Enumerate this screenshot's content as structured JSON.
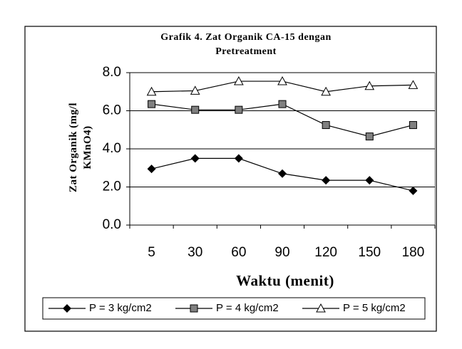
{
  "chart_data": {
    "type": "line",
    "title": "Grafik 4. Zat Organik CA-15 dengan Pretreatment",
    "xlabel": "Waktu (menit)",
    "ylabel": "Zat Organik (mg/l KMnO4)",
    "categories": [
      "5",
      "30",
      "60",
      "90",
      "120",
      "150",
      "180"
    ],
    "series": [
      {
        "name": "P = 3 kg/cm2",
        "color": "#000000",
        "marker": "diamond",
        "values": [
          2.95,
          3.5,
          3.5,
          2.7,
          2.35,
          2.35,
          1.8
        ]
      },
      {
        "name": "P = 4 kg/cm2",
        "color": "#000000",
        "marker": "square",
        "values": [
          6.35,
          6.05,
          6.05,
          6.35,
          5.25,
          4.65,
          5.25
        ]
      },
      {
        "name": "P = 5 kg/cm2",
        "color": "#000000",
        "marker": "triangle",
        "values": [
          7.0,
          7.05,
          7.55,
          7.55,
          7.0,
          7.3,
          7.35
        ]
      }
    ],
    "ylim": [
      0,
      8
    ],
    "yticks": [
      {
        "value": 0,
        "label": "0.0"
      },
      {
        "value": 2,
        "label": "2.0"
      },
      {
        "value": 4,
        "label": "4.0"
      },
      {
        "value": 6,
        "label": "6.0"
      },
      {
        "value": 8,
        "label": "8.0"
      }
    ],
    "grid": true,
    "legend": "bottom"
  }
}
